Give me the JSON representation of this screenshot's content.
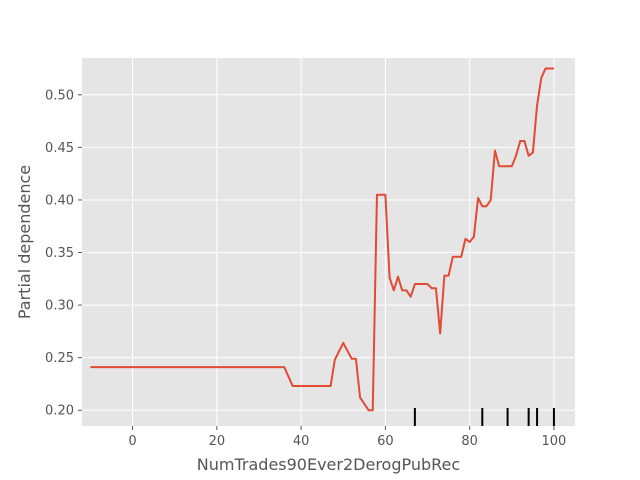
{
  "chart_data": {
    "type": "line",
    "xlabel": "NumTrades90Ever2DerogPubRec",
    "ylabel": "Partial dependence",
    "xlim": [
      -12,
      105
    ],
    "ylim": [
      0.185,
      0.535
    ],
    "xticks": [
      0,
      20,
      40,
      60,
      80,
      100
    ],
    "yticks": [
      0.2,
      0.25,
      0.3,
      0.35,
      0.4,
      0.45,
      0.5
    ],
    "ytick_labels": [
      "0.20",
      "0.25",
      "0.30",
      "0.35",
      "0.40",
      "0.45",
      "0.50"
    ],
    "grid": true,
    "style": "ggplot",
    "colors": {
      "background": "#E5E5E5",
      "grid": "#FFFFFF",
      "line": "#E24A33",
      "rug": "#000000",
      "text": "#555555"
    },
    "series": [
      {
        "x": [
          -10,
          36,
          38,
          40,
          46,
          47,
          48,
          50,
          52,
          53,
          54,
          56,
          57,
          58,
          60,
          61,
          62,
          63,
          64,
          65,
          66,
          67,
          68,
          70,
          71,
          72,
          73,
          74,
          75,
          76,
          78,
          79,
          80,
          81,
          82,
          83,
          84,
          85,
          86,
          87,
          88,
          90,
          91,
          92,
          93,
          94,
          95,
          96,
          97,
          98,
          100
        ],
        "y": [
          0.241,
          0.241,
          0.223,
          0.223,
          0.223,
          0.223,
          0.248,
          0.264,
          0.249,
          0.249,
          0.212,
          0.2,
          0.2,
          0.405,
          0.405,
          0.326,
          0.314,
          0.327,
          0.314,
          0.314,
          0.308,
          0.32,
          0.32,
          0.32,
          0.316,
          0.316,
          0.273,
          0.328,
          0.328,
          0.346,
          0.346,
          0.363,
          0.36,
          0.365,
          0.402,
          0.394,
          0.394,
          0.4,
          0.447,
          0.432,
          0.432,
          0.432,
          0.442,
          0.456,
          0.456,
          0.442,
          0.445,
          0.49,
          0.516,
          0.525,
          0.525
        ]
      }
    ],
    "rug": [
      67,
      83,
      89,
      94,
      96,
      100
    ]
  }
}
